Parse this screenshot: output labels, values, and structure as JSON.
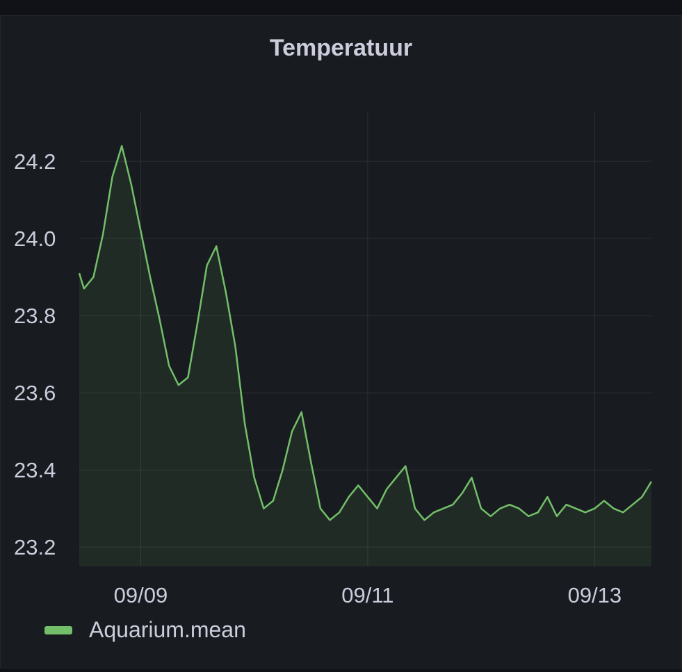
{
  "panel": {
    "title": "Temperatuur"
  },
  "legend": {
    "items": [
      {
        "label": "Aquarium.mean",
        "color": "#73bf69"
      }
    ]
  },
  "colors": {
    "background": "#181b1f",
    "grid": "#2c2f34",
    "series": "#73bf69",
    "text": "#ccccdc"
  },
  "chart_data": {
    "type": "area",
    "title": "Temperatuur",
    "xlabel": "",
    "ylabel": "",
    "x_ticks": [
      "09/09",
      "09/11",
      "09/13"
    ],
    "y_ticks": [
      "23.2",
      "23.4",
      "23.6",
      "23.8",
      "24.0",
      "24.2"
    ],
    "ylim": [
      23.15,
      24.33
    ],
    "xlim": [
      "2023-09-08 11:00",
      "2023-09-13 12:00"
    ],
    "grid": true,
    "legend_position": "bottom-left",
    "series": [
      {
        "name": "Aquarium.mean",
        "color": "#73bf69",
        "x": [
          "09-08 11:00",
          "09-08 12:00",
          "09-08 14:00",
          "09-08 16:00",
          "09-08 18:00",
          "09-08 20:00",
          "09-08 22:00",
          "09-09 00:00",
          "09-09 02:00",
          "09-09 04:00",
          "09-09 06:00",
          "09-09 08:00",
          "09-09 10:00",
          "09-09 12:00",
          "09-09 14:00",
          "09-09 16:00",
          "09-09 18:00",
          "09-09 20:00",
          "09-09 22:00",
          "09-10 00:00",
          "09-10 02:00",
          "09-10 04:00",
          "09-10 06:00",
          "09-10 08:00",
          "09-10 10:00",
          "09-10 12:00",
          "09-10 14:00",
          "09-10 16:00",
          "09-10 18:00",
          "09-10 20:00",
          "09-10 22:00",
          "09-11 00:00",
          "09-11 02:00",
          "09-11 04:00",
          "09-11 06:00",
          "09-11 08:00",
          "09-11 10:00",
          "09-11 12:00",
          "09-11 14:00",
          "09-11 16:00",
          "09-11 18:00",
          "09-11 20:00",
          "09-11 22:00",
          "09-12 00:00",
          "09-12 02:00",
          "09-12 04:00",
          "09-12 06:00",
          "09-12 08:00",
          "09-12 10:00",
          "09-12 12:00",
          "09-12 14:00",
          "09-12 16:00",
          "09-12 18:00",
          "09-12 20:00",
          "09-12 22:00",
          "09-13 00:00",
          "09-13 02:00",
          "09-13 04:00",
          "09-13 06:00",
          "09-13 08:00",
          "09-13 10:00",
          "09-13 12:00"
        ],
        "values": [
          23.91,
          23.87,
          23.9,
          24.01,
          24.16,
          24.24,
          24.14,
          24.02,
          23.9,
          23.79,
          23.67,
          23.62,
          23.64,
          23.78,
          23.93,
          23.98,
          23.86,
          23.72,
          23.52,
          23.38,
          23.3,
          23.32,
          23.4,
          23.5,
          23.55,
          23.42,
          23.3,
          23.27,
          23.29,
          23.33,
          23.36,
          23.33,
          23.3,
          23.35,
          23.38,
          23.41,
          23.3,
          23.27,
          23.29,
          23.3,
          23.31,
          23.34,
          23.38,
          23.3,
          23.28,
          23.3,
          23.31,
          23.3,
          23.28,
          23.29,
          23.33,
          23.28,
          23.31,
          23.3,
          23.29,
          23.3,
          23.32,
          23.3,
          23.29,
          23.31,
          23.33,
          23.37
        ]
      }
    ]
  }
}
